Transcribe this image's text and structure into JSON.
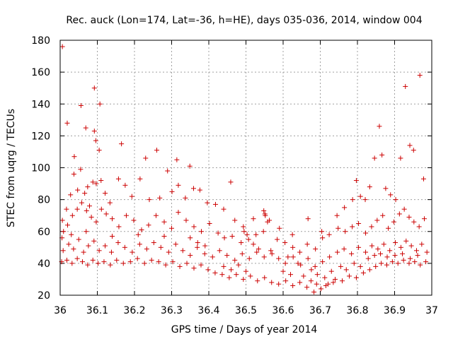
{
  "chart_data": {
    "type": "scatter",
    "title": "Rec. auck (Lon=174, Lat=-36, h=HE), days 035-036, 2014, window 004",
    "xlabel": "GPS time / Days of year 2014",
    "ylabel": "STEC from uqrg / TECUs",
    "xlim": [
      36,
      37
    ],
    "ylim": [
      20,
      180
    ],
    "xticks": [
      "36",
      "36.1",
      "36.2",
      "36.3",
      "36.4",
      "36.5",
      "36.6",
      "36.7",
      "36.8",
      "36.9",
      "37"
    ],
    "yticks": [
      "20",
      "40",
      "60",
      "80",
      "100",
      "120",
      "140",
      "160",
      "180"
    ],
    "grid": true,
    "marker": "+",
    "color": "#cc0000",
    "series": [
      {
        "name": "STEC",
        "points": [
          [
            36.006,
            176
          ],
          [
            36.019,
            128
          ],
          [
            36.038,
            107
          ],
          [
            36.056,
            139
          ],
          [
            36.069,
            125
          ],
          [
            36.092,
            150
          ],
          [
            36.092,
            123
          ],
          [
            36.096,
            117
          ],
          [
            36.107,
            140
          ],
          [
            36.105,
            111
          ],
          [
            36.165,
            115
          ],
          [
            36.23,
            106
          ],
          [
            36.26,
            111
          ],
          [
            36.314,
            105
          ],
          [
            36.349,
            101
          ],
          [
            36.459,
            91
          ],
          [
            36.006,
            67
          ],
          [
            36.017,
            74
          ],
          [
            36.028,
            83
          ],
          [
            36.037,
            96
          ],
          [
            36.047,
            86
          ],
          [
            36.055,
            99
          ],
          [
            36.066,
            84
          ],
          [
            36.074,
            88
          ],
          [
            36.079,
            76
          ],
          [
            36.088,
            91
          ],
          [
            36.097,
            90
          ],
          [
            36.11,
            92
          ],
          [
            36.121,
            84
          ],
          [
            36.134,
            78
          ],
          [
            36.157,
            93
          ],
          [
            36.175,
            89
          ],
          [
            36.193,
            82
          ],
          [
            36.215,
            93
          ],
          [
            36.24,
            80
          ],
          [
            36.268,
            81
          ],
          [
            36.289,
            98
          ],
          [
            36.301,
            85
          ],
          [
            36.318,
            89
          ],
          [
            36.337,
            81
          ],
          [
            36.359,
            87
          ],
          [
            36.376,
            86
          ],
          [
            36.396,
            78
          ],
          [
            36.418,
            77
          ],
          [
            36.44,
            74
          ],
          [
            36.47,
            67
          ],
          [
            36.493,
            63
          ],
          [
            36.52,
            68
          ],
          [
            36.551,
            71
          ],
          [
            36.59,
            62
          ],
          [
            36.625,
            58
          ],
          [
            36.667,
            68
          ],
          [
            36.704,
            60
          ],
          [
            36.745,
            70
          ],
          [
            36.765,
            75
          ],
          [
            36.787,
            80
          ],
          [
            36.797,
            92
          ],
          [
            36.808,
            82
          ],
          [
            36.821,
            80
          ],
          [
            36.833,
            88
          ],
          [
            36.846,
            106
          ],
          [
            36.859,
            126
          ],
          [
            36.866,
            108
          ],
          [
            36.876,
            87
          ],
          [
            36.889,
            83
          ],
          [
            36.903,
            80
          ],
          [
            36.916,
            106
          ],
          [
            36.929,
            151
          ],
          [
            36.941,
            114
          ],
          [
            36.951,
            111
          ],
          [
            36.968,
            158
          ],
          [
            36.978,
            93
          ],
          [
            36.005,
            56
          ],
          [
            36.02,
            64
          ],
          [
            36.033,
            70
          ],
          [
            36.046,
            74
          ],
          [
            36.058,
            78
          ],
          [
            36.071,
            73
          ],
          [
            36.084,
            69
          ],
          [
            36.097,
            66
          ],
          [
            36.111,
            74
          ],
          [
            36.124,
            71
          ],
          [
            36.14,
            68
          ],
          [
            36.158,
            63
          ],
          [
            36.178,
            70
          ],
          [
            36.198,
            67
          ],
          [
            36.219,
            61
          ],
          [
            36.238,
            64
          ],
          [
            36.258,
            70
          ],
          [
            36.28,
            66
          ],
          [
            36.3,
            62
          ],
          [
            36.318,
            72
          ],
          [
            36.339,
            67
          ],
          [
            36.36,
            63
          ],
          [
            36.38,
            60
          ],
          [
            36.402,
            65
          ],
          [
            36.425,
            59
          ],
          [
            36.442,
            56
          ],
          [
            36.463,
            57
          ],
          [
            36.487,
            53
          ],
          [
            36.507,
            55
          ],
          [
            36.527,
            58
          ],
          [
            36.547,
            60
          ],
          [
            36.563,
            67
          ],
          [
            36.584,
            55
          ],
          [
            36.605,
            53
          ],
          [
            36.626,
            50
          ],
          [
            36.645,
            47
          ],
          [
            36.665,
            52
          ],
          [
            36.687,
            49
          ],
          [
            36.706,
            56
          ],
          [
            36.724,
            58
          ],
          [
            36.748,
            62
          ],
          [
            36.767,
            60
          ],
          [
            36.786,
            63
          ],
          [
            36.803,
            65
          ],
          [
            36.822,
            59
          ],
          [
            36.838,
            63
          ],
          [
            36.853,
            67
          ],
          [
            36.868,
            70
          ],
          [
            36.883,
            62
          ],
          [
            36.898,
            66
          ],
          [
            36.913,
            71
          ],
          [
            36.926,
            74
          ],
          [
            36.939,
            69
          ],
          [
            36.952,
            66
          ],
          [
            36.966,
            63
          ],
          [
            36.98,
            68
          ],
          [
            36.008,
            48
          ],
          [
            36.023,
            52
          ],
          [
            36.036,
            49
          ],
          [
            36.05,
            55
          ],
          [
            36.063,
            47
          ],
          [
            36.076,
            51
          ],
          [
            36.091,
            54
          ],
          [
            36.105,
            48
          ],
          [
            36.121,
            51
          ],
          [
            36.138,
            47
          ],
          [
            36.156,
            53
          ],
          [
            36.174,
            50
          ],
          [
            36.194,
            47
          ],
          [
            36.214,
            52
          ],
          [
            36.233,
            49
          ],
          [
            36.252,
            53
          ],
          [
            36.271,
            50
          ],
          [
            36.292,
            47
          ],
          [
            36.311,
            52
          ],
          [
            36.33,
            48
          ],
          [
            36.35,
            45
          ],
          [
            36.369,
            50
          ],
          [
            36.389,
            46
          ],
          [
            36.41,
            44
          ],
          [
            36.429,
            48
          ],
          [
            36.449,
            45
          ],
          [
            36.47,
            42
          ],
          [
            36.49,
            46
          ],
          [
            36.509,
            43
          ],
          [
            36.529,
            47
          ],
          [
            36.549,
            44
          ],
          [
            36.567,
            48
          ],
          [
            36.588,
            43
          ],
          [
            36.606,
            40
          ],
          [
            36.627,
            44
          ],
          [
            36.647,
            39
          ],
          [
            36.667,
            43
          ],
          [
            36.686,
            38
          ],
          [
            36.706,
            41
          ],
          [
            36.725,
            44
          ],
          [
            36.746,
            47
          ],
          [
            36.764,
            49
          ],
          [
            36.784,
            46
          ],
          [
            36.803,
            50
          ],
          [
            36.822,
            47
          ],
          [
            36.839,
            51
          ],
          [
            36.855,
            49
          ],
          [
            36.871,
            52
          ],
          [
            36.887,
            48
          ],
          [
            36.902,
            53
          ],
          [
            36.917,
            50
          ],
          [
            36.931,
            54
          ],
          [
            36.945,
            51
          ],
          [
            36.959,
            48
          ],
          [
            36.973,
            52
          ],
          [
            36.987,
            47
          ],
          [
            36.004,
            41
          ],
          [
            36.018,
            42
          ],
          [
            36.032,
            40
          ],
          [
            36.046,
            43
          ],
          [
            36.06,
            41
          ],
          [
            36.074,
            39
          ],
          [
            36.088,
            42
          ],
          [
            36.102,
            40
          ],
          [
            36.118,
            41
          ],
          [
            36.135,
            39
          ],
          [
            36.152,
            42
          ],
          [
            36.17,
            40
          ],
          [
            36.189,
            41
          ],
          [
            36.208,
            43
          ],
          [
            36.227,
            40
          ],
          [
            36.246,
            42
          ],
          [
            36.265,
            41
          ],
          [
            36.284,
            39
          ],
          [
            36.303,
            41
          ],
          [
            36.322,
            38
          ],
          [
            36.341,
            40
          ],
          [
            36.36,
            37
          ],
          [
            36.379,
            39
          ],
          [
            36.398,
            36
          ],
          [
            36.417,
            34
          ],
          [
            36.436,
            33
          ],
          [
            36.455,
            31
          ],
          [
            36.474,
            33
          ],
          [
            36.493,
            30
          ],
          [
            36.512,
            32
          ],
          [
            36.531,
            29
          ],
          [
            36.55,
            31
          ],
          [
            36.569,
            28
          ],
          [
            36.588,
            27
          ],
          [
            36.607,
            29
          ],
          [
            36.626,
            26
          ],
          [
            36.645,
            28
          ],
          [
            36.664,
            25
          ],
          [
            36.683,
            22
          ],
          [
            36.702,
            24
          ],
          [
            36.721,
            27
          ],
          [
            36.74,
            30
          ],
          [
            36.759,
            29
          ],
          [
            36.778,
            32
          ],
          [
            36.797,
            31
          ],
          [
            36.816,
            34
          ],
          [
            36.833,
            36
          ],
          [
            36.849,
            38
          ],
          [
            36.864,
            40
          ],
          [
            36.879,
            39
          ],
          [
            36.894,
            41
          ],
          [
            36.909,
            40
          ],
          [
            36.924,
            42
          ],
          [
            36.939,
            40
          ],
          [
            36.954,
            41
          ],
          [
            36.969,
            39
          ],
          [
            36.984,
            41
          ],
          [
            36.548,
            73
          ],
          [
            36.552,
            70
          ],
          [
            36.558,
            66
          ],
          [
            36.495,
            60
          ],
          [
            36.503,
            58
          ],
          [
            36.52,
            52
          ],
          [
            36.534,
            49
          ],
          [
            36.57,
            46
          ],
          [
            36.613,
            44
          ],
          [
            36.64,
            40
          ],
          [
            36.676,
            36
          ],
          [
            36.692,
            33
          ],
          [
            36.712,
            31
          ],
          [
            36.73,
            35
          ],
          [
            36.755,
            38
          ],
          [
            36.77,
            36
          ],
          [
            36.791,
            40
          ],
          [
            36.808,
            38
          ],
          [
            36.829,
            43
          ],
          [
            36.846,
            45
          ],
          [
            36.862,
            46
          ],
          [
            36.88,
            44
          ],
          [
            36.901,
            45
          ],
          [
            36.921,
            46
          ],
          [
            36.942,
            43
          ],
          [
            36.962,
            45
          ],
          [
            36.44,
            38
          ],
          [
            36.46,
            36
          ],
          [
            36.48,
            39
          ],
          [
            36.5,
            35
          ],
          [
            36.35,
            56
          ],
          [
            36.37,
            53
          ],
          [
            36.39,
            51
          ],
          [
            36.28,
            57
          ],
          [
            36.21,
            58
          ],
          [
            36.14,
            57
          ],
          [
            36.07,
            60
          ],
          [
            36.009,
            60
          ],
          [
            36.03,
            58
          ],
          [
            36.6,
            35
          ],
          [
            36.62,
            33
          ],
          [
            36.655,
            32
          ],
          [
            36.675,
            29
          ],
          [
            36.69,
            27
          ],
          [
            36.715,
            26
          ],
          [
            36.735,
            28
          ]
        ]
      }
    ]
  }
}
